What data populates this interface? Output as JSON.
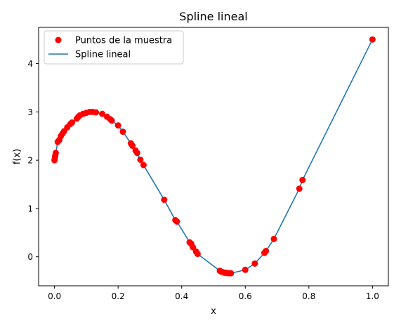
{
  "chart_data": {
    "type": "scatter",
    "title": "Spline lineal",
    "xlabel": "x",
    "ylabel": "f(x)",
    "xlim": [
      -0.05,
      1.05
    ],
    "ylim": [
      -0.6,
      4.75
    ],
    "xticks": [
      0.0,
      0.2,
      0.4,
      0.6,
      0.8,
      1.0
    ],
    "xtick_labels": [
      "0.0",
      "0.2",
      "0.4",
      "0.6",
      "0.8",
      "1.0"
    ],
    "yticks": [
      0,
      1,
      2,
      3,
      4
    ],
    "ytick_labels": [
      "0",
      "1",
      "2",
      "3",
      "4"
    ],
    "grid": false,
    "legend_position": "top-left",
    "series": [
      {
        "name": "Puntos de la muestra",
        "kind": "scatter",
        "color": "#ff0000",
        "points": [
          [
            0.0,
            2.0
          ],
          [
            0.001,
            2.04
          ],
          [
            0.002,
            2.09
          ],
          [
            0.004,
            2.15
          ],
          [
            0.01,
            2.38
          ],
          [
            0.015,
            2.42
          ],
          [
            0.02,
            2.5
          ],
          [
            0.025,
            2.55
          ],
          [
            0.03,
            2.6
          ],
          [
            0.04,
            2.68
          ],
          [
            0.05,
            2.75
          ],
          [
            0.055,
            2.78
          ],
          [
            0.07,
            2.86
          ],
          [
            0.075,
            2.9
          ],
          [
            0.08,
            2.93
          ],
          [
            0.09,
            2.96
          ],
          [
            0.1,
            2.98
          ],
          [
            0.11,
            3.0
          ],
          [
            0.12,
            3.0
          ],
          [
            0.13,
            2.99
          ],
          [
            0.15,
            2.96
          ],
          [
            0.165,
            2.9
          ],
          [
            0.175,
            2.85
          ],
          [
            0.18,
            2.82
          ],
          [
            0.2,
            2.72
          ],
          [
            0.215,
            2.59
          ],
          [
            0.24,
            2.35
          ],
          [
            0.245,
            2.3
          ],
          [
            0.255,
            2.2
          ],
          [
            0.26,
            2.15
          ],
          [
            0.27,
            2.01
          ],
          [
            0.28,
            1.9
          ],
          [
            0.345,
            1.18
          ],
          [
            0.38,
            0.76
          ],
          [
            0.385,
            0.73
          ],
          [
            0.425,
            0.3
          ],
          [
            0.43,
            0.27
          ],
          [
            0.435,
            0.2
          ],
          [
            0.445,
            0.11
          ],
          [
            0.45,
            0.06
          ],
          [
            0.52,
            -0.29
          ],
          [
            0.525,
            -0.31
          ],
          [
            0.53,
            -0.32
          ],
          [
            0.535,
            -0.33
          ],
          [
            0.54,
            -0.33
          ],
          [
            0.545,
            -0.34
          ],
          [
            0.55,
            -0.34
          ],
          [
            0.555,
            -0.34
          ],
          [
            0.6,
            -0.27
          ],
          [
            0.63,
            -0.14
          ],
          [
            0.66,
            0.08
          ],
          [
            0.665,
            0.12
          ],
          [
            0.69,
            0.37
          ],
          [
            0.77,
            1.41
          ],
          [
            0.78,
            1.59
          ],
          [
            1.0,
            4.5
          ]
        ]
      },
      {
        "name": "Spline lineal",
        "kind": "line",
        "color": "#1f77b4"
      }
    ]
  }
}
